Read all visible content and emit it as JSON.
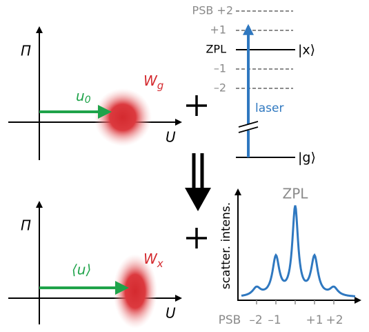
{
  "top_panel": {
    "y_axis": "Π",
    "x_axis": "U",
    "displacement": {
      "main": "u",
      "sub": "0"
    },
    "wigner": {
      "main": "W",
      "sub": "g"
    }
  },
  "levels": {
    "psb_plus2": "PSB +2",
    "plus1": "+1",
    "zpl": "ZPL",
    "minus1": "–1",
    "minus2": "–2",
    "excited": "|x⟩",
    "ground": "|g⟩",
    "laser": "laser"
  },
  "bottom_panel": {
    "y_axis": "Π",
    "x_axis": "U",
    "displacement": "⟨u⟩",
    "wigner": {
      "main": "W",
      "sub": "x"
    }
  },
  "spectrum": {
    "peak_label": "ZPL",
    "y_axis": "scatter. intens.",
    "x_labels": [
      "PSB",
      "–2",
      "–1",
      "+1",
      "+2"
    ]
  }
}
